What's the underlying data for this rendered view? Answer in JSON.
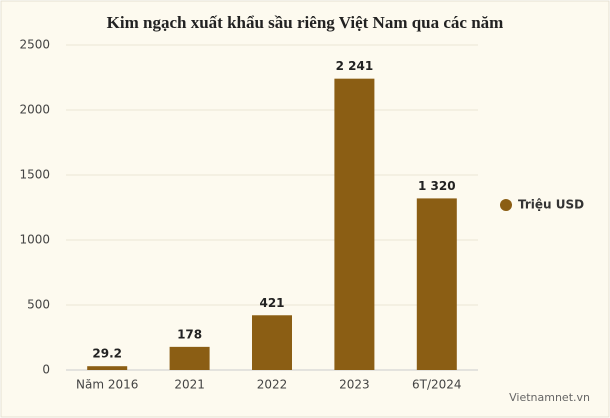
{
  "chart_data": {
    "type": "bar",
    "title": "Kim ngạch xuất khẩu sầu riêng Việt Nam qua các năm",
    "categories": [
      "Năm 2016",
      "2021",
      "2022",
      "2023",
      "6T/2024"
    ],
    "series": [
      {
        "name": "Triệu USD",
        "color": "#8b5e14",
        "values": [
          29.2,
          178,
          421,
          2241,
          1320
        ],
        "value_labels": [
          "29.2",
          "178",
          "421",
          "2 241",
          "1 320"
        ]
      }
    ],
    "ylim": [
      0,
      2500
    ],
    "yticks": [
      0,
      500,
      1000,
      1500,
      2000,
      2500
    ],
    "grid": true,
    "legend": "right",
    "source": "Vietnamnet.vn"
  }
}
